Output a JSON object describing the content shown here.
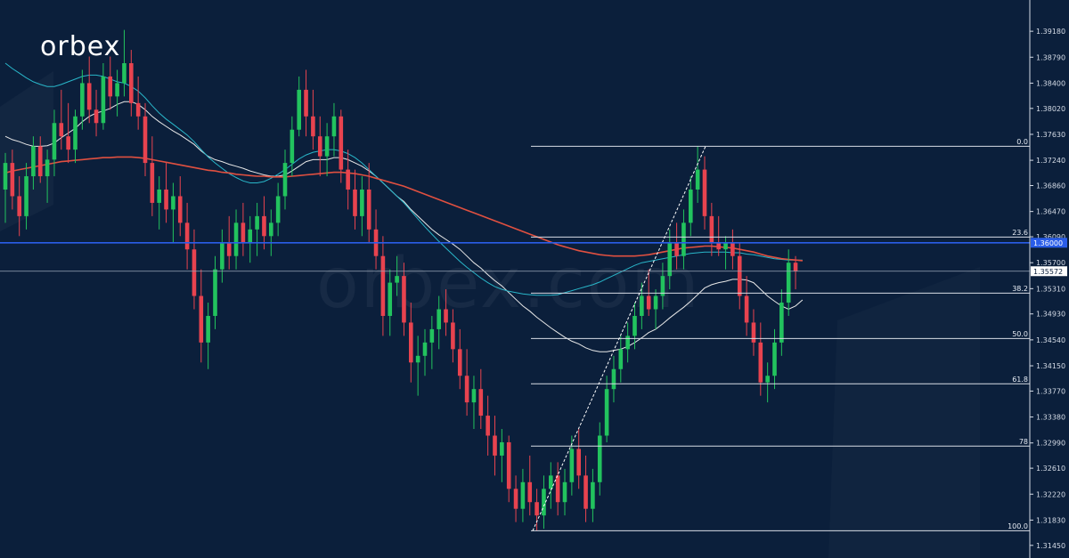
{
  "logo": {
    "text": "orbex"
  },
  "watermark": {
    "text": "orbex.com"
  },
  "colors": {
    "background": "#0b1f3b",
    "bull": "#22c35e",
    "bear": "#e8434f",
    "ma_fast": "#29b6c9",
    "ma_slow": "#e05040",
    "ma_white": "#e8e8e8",
    "fib": "#d8dde6",
    "hline": "#2a5de8",
    "price_tag": "#ffffff"
  },
  "chart_data": {
    "type": "candlestick",
    "title": "",
    "ylim": [
      1.3126,
      1.3965
    ],
    "yticks": [
      "1.39180",
      "1.38790",
      "1.38400",
      "1.38020",
      "1.37630",
      "1.37240",
      "1.36860",
      "1.36470",
      "1.36090",
      "1.35700",
      "1.35310",
      "1.34930",
      "1.34540",
      "1.34150",
      "1.33770",
      "1.33380",
      "1.32990",
      "1.32610",
      "1.32220",
      "1.31830",
      "1.31450"
    ],
    "current_price": "1.35572",
    "horizontal_level": {
      "value": 1.36,
      "label": "1.36000"
    },
    "fibonacci": {
      "high": 1.3745,
      "low": 1.3167,
      "levels": [
        {
          "label": "0.0",
          "value": 1.3745
        },
        {
          "label": "23.6",
          "value": 1.36086
        },
        {
          "label": "38.2",
          "value": 1.35242
        },
        {
          "label": "50.0",
          "value": 1.3456
        },
        {
          "label": "61.8",
          "value": 1.33879
        },
        {
          "label": "78",
          "value": 1.32942
        },
        {
          "label": "100.0",
          "value": 1.3167
        }
      ]
    },
    "candles": [
      [
        1.368,
        1.3735,
        1.363,
        1.372
      ],
      [
        1.372,
        1.374,
        1.365,
        1.367
      ],
      [
        1.367,
        1.37,
        1.361,
        1.364
      ],
      [
        1.364,
        1.372,
        1.362,
        1.37
      ],
      [
        1.37,
        1.376,
        1.368,
        1.3745
      ],
      [
        1.3745,
        1.376,
        1.369,
        1.37
      ],
      [
        1.37,
        1.374,
        1.366,
        1.3725
      ],
      [
        1.3725,
        1.38,
        1.37,
        1.378
      ],
      [
        1.378,
        1.383,
        1.374,
        1.376
      ],
      [
        1.376,
        1.381,
        1.372,
        1.374
      ],
      [
        1.374,
        1.38,
        1.372,
        1.379
      ],
      [
        1.379,
        1.386,
        1.377,
        1.384
      ],
      [
        1.384,
        1.388,
        1.378,
        1.38
      ],
      [
        1.38,
        1.383,
        1.376,
        1.378
      ],
      [
        1.378,
        1.387,
        1.377,
        1.385
      ],
      [
        1.385,
        1.388,
        1.38,
        1.382
      ],
      [
        1.382,
        1.386,
        1.379,
        1.384
      ],
      [
        1.384,
        1.392,
        1.382,
        1.387
      ],
      [
        1.387,
        1.389,
        1.379,
        1.381
      ],
      [
        1.381,
        1.385,
        1.377,
        1.379
      ],
      [
        1.379,
        1.381,
        1.37,
        1.372
      ],
      [
        1.372,
        1.376,
        1.364,
        1.366
      ],
      [
        1.366,
        1.37,
        1.362,
        1.368
      ],
      [
        1.368,
        1.372,
        1.363,
        1.365
      ],
      [
        1.365,
        1.369,
        1.36,
        1.367
      ],
      [
        1.367,
        1.37,
        1.361,
        1.363
      ],
      [
        1.363,
        1.366,
        1.356,
        1.359
      ],
      [
        1.359,
        1.362,
        1.35,
        1.352
      ],
      [
        1.352,
        1.356,
        1.342,
        1.345
      ],
      [
        1.345,
        1.351,
        1.341,
        1.349
      ],
      [
        1.349,
        1.358,
        1.347,
        1.356
      ],
      [
        1.356,
        1.362,
        1.354,
        1.36
      ],
      [
        1.36,
        1.364,
        1.356,
        1.358
      ],
      [
        1.358,
        1.365,
        1.356,
        1.363
      ],
      [
        1.363,
        1.366,
        1.358,
        1.36
      ],
      [
        1.36,
        1.364,
        1.357,
        1.362
      ],
      [
        1.362,
        1.366,
        1.358,
        1.364
      ],
      [
        1.364,
        1.367,
        1.359,
        1.361
      ],
      [
        1.361,
        1.365,
        1.358,
        1.363
      ],
      [
        1.363,
        1.369,
        1.361,
        1.367
      ],
      [
        1.367,
        1.374,
        1.365,
        1.372
      ],
      [
        1.372,
        1.379,
        1.37,
        1.377
      ],
      [
        1.377,
        1.385,
        1.376,
        1.383
      ],
      [
        1.383,
        1.386,
        1.376,
        1.379
      ],
      [
        1.379,
        1.383,
        1.374,
        1.376
      ],
      [
        1.376,
        1.379,
        1.37,
        1.373
      ],
      [
        1.373,
        1.378,
        1.37,
        1.376
      ],
      [
        1.376,
        1.381,
        1.373,
        1.379
      ],
      [
        1.379,
        1.38,
        1.369,
        1.371
      ],
      [
        1.371,
        1.374,
        1.365,
        1.368
      ],
      [
        1.368,
        1.371,
        1.362,
        1.364
      ],
      [
        1.364,
        1.37,
        1.361,
        1.368
      ],
      [
        1.368,
        1.372,
        1.36,
        1.362
      ],
      [
        1.362,
        1.365,
        1.356,
        1.358
      ],
      [
        1.358,
        1.361,
        1.346,
        1.349
      ],
      [
        1.349,
        1.356,
        1.346,
        1.354
      ],
      [
        1.354,
        1.358,
        1.352,
        1.355
      ],
      [
        1.355,
        1.357,
        1.346,
        1.348
      ],
      [
        1.348,
        1.351,
        1.339,
        1.342
      ],
      [
        1.342,
        1.346,
        1.337,
        1.343
      ],
      [
        1.343,
        1.347,
        1.34,
        1.345
      ],
      [
        1.345,
        1.349,
        1.341,
        1.347
      ],
      [
        1.347,
        1.352,
        1.344,
        1.35
      ],
      [
        1.35,
        1.353,
        1.346,
        1.348
      ],
      [
        1.348,
        1.35,
        1.342,
        1.344
      ],
      [
        1.344,
        1.347,
        1.338,
        1.34
      ],
      [
        1.34,
        1.344,
        1.334,
        1.336
      ],
      [
        1.336,
        1.34,
        1.332,
        1.338
      ],
      [
        1.338,
        1.341,
        1.332,
        1.334
      ],
      [
        1.334,
        1.337,
        1.328,
        1.331
      ],
      [
        1.331,
        1.334,
        1.325,
        1.328
      ],
      [
        1.328,
        1.332,
        1.324,
        1.33
      ],
      [
        1.33,
        1.331,
        1.321,
        1.323
      ],
      [
        1.323,
        1.325,
        1.318,
        1.32
      ],
      [
        1.32,
        1.326,
        1.318,
        1.324
      ],
      [
        1.324,
        1.328,
        1.319,
        1.321
      ],
      [
        1.321,
        1.323,
        1.3167,
        1.319
      ],
      [
        1.319,
        1.325,
        1.317,
        1.323
      ],
      [
        1.323,
        1.327,
        1.32,
        1.325
      ],
      [
        1.325,
        1.327,
        1.319,
        1.321
      ],
      [
        1.321,
        1.326,
        1.319,
        1.324
      ],
      [
        1.324,
        1.331,
        1.322,
        1.329
      ],
      [
        1.329,
        1.332,
        1.323,
        1.325
      ],
      [
        1.325,
        1.328,
        1.318,
        1.32
      ],
      [
        1.32,
        1.326,
        1.318,
        1.324
      ],
      [
        1.324,
        1.333,
        1.322,
        1.331
      ],
      [
        1.331,
        1.34,
        1.33,
        1.338
      ],
      [
        1.338,
        1.343,
        1.336,
        1.341
      ],
      [
        1.341,
        1.346,
        1.339,
        1.344
      ],
      [
        1.344,
        1.348,
        1.342,
        1.346
      ],
      [
        1.346,
        1.351,
        1.344,
        1.349
      ],
      [
        1.349,
        1.354,
        1.347,
        1.352
      ],
      [
        1.352,
        1.356,
        1.349,
        1.35
      ],
      [
        1.35,
        1.353,
        1.347,
        1.352
      ],
      [
        1.352,
        1.357,
        1.35,
        1.355
      ],
      [
        1.355,
        1.362,
        1.353,
        1.36
      ],
      [
        1.36,
        1.363,
        1.356,
        1.358
      ],
      [
        1.358,
        1.365,
        1.356,
        1.363
      ],
      [
        1.363,
        1.37,
        1.361,
        1.368
      ],
      [
        1.368,
        1.3745,
        1.366,
        1.371
      ],
      [
        1.371,
        1.373,
        1.362,
        1.364
      ],
      [
        1.364,
        1.366,
        1.358,
        1.36
      ],
      [
        1.36,
        1.364,
        1.358,
        1.359
      ],
      [
        1.359,
        1.361,
        1.356,
        1.36
      ],
      [
        1.36,
        1.362,
        1.356,
        1.358
      ],
      [
        1.358,
        1.36,
        1.35,
        1.352
      ],
      [
        1.352,
        1.355,
        1.346,
        1.348
      ],
      [
        1.348,
        1.35,
        1.343,
        1.345
      ],
      [
        1.345,
        1.348,
        1.337,
        1.339
      ],
      [
        1.339,
        1.342,
        1.336,
        1.34
      ],
      [
        1.34,
        1.347,
        1.338,
        1.345
      ],
      [
        1.345,
        1.353,
        1.343,
        1.351
      ],
      [
        1.351,
        1.359,
        1.349,
        1.357
      ],
      [
        1.357,
        1.358,
        1.353,
        1.3557
      ]
    ],
    "series": [
      {
        "values": [
          1.376,
          1.3755,
          1.3752,
          1.3748,
          1.3745,
          1.3745,
          1.3746,
          1.375,
          1.3758,
          1.3765,
          1.3772,
          1.3782,
          1.379,
          1.3795,
          1.3798,
          1.3802,
          1.3808,
          1.3812,
          1.3812,
          1.3808,
          1.38,
          1.379,
          1.3782,
          1.3775,
          1.3768,
          1.3762,
          1.3755,
          1.3748,
          1.3738,
          1.373,
          1.3725,
          1.3722,
          1.3718,
          1.3715,
          1.3712,
          1.3708,
          1.3705,
          1.3702,
          1.37,
          1.37,
          1.3702,
          1.3708,
          1.3715,
          1.3722,
          1.3725,
          1.3725,
          1.3725,
          1.3728,
          1.3728,
          1.3725,
          1.372,
          1.3715,
          1.3708,
          1.37,
          1.369,
          1.368,
          1.367,
          1.3662,
          1.365,
          1.364,
          1.363,
          1.362,
          1.3612,
          1.3605,
          1.3598,
          1.359,
          1.358,
          1.357,
          1.3562,
          1.3552,
          1.3543,
          1.3535,
          1.3525,
          1.3515,
          1.3505,
          1.3497,
          1.3488,
          1.348,
          1.3472,
          1.3465,
          1.3458,
          1.3452,
          1.3448,
          1.3442,
          1.3438,
          1.3436,
          1.3436,
          1.3438,
          1.344,
          1.3444,
          1.345,
          1.3457,
          1.3465,
          1.347,
          1.3478,
          1.3487,
          1.3495,
          1.3503,
          1.3512,
          1.3522,
          1.3532,
          1.3537,
          1.354,
          1.3542,
          1.3545,
          1.3545,
          1.3544,
          1.354,
          1.353,
          1.352,
          1.3512,
          1.3505,
          1.35,
          1.3505,
          1.3514
        ]
      },
      {
        "values": [
          1.387,
          1.3862,
          1.3855,
          1.3848,
          1.3842,
          1.3838,
          1.3835,
          1.3835,
          1.3838,
          1.3842,
          1.3846,
          1.385,
          1.3852,
          1.3852,
          1.385,
          1.3846,
          1.3842,
          1.384,
          1.3835,
          1.3828,
          1.3818,
          1.3806,
          1.3795,
          1.3786,
          1.3778,
          1.377,
          1.3762,
          1.3752,
          1.374,
          1.3729,
          1.372,
          1.3712,
          1.3704,
          1.3698,
          1.3693,
          1.369,
          1.369,
          1.3692,
          1.3697,
          1.3703,
          1.371,
          1.3718,
          1.3726,
          1.3732,
          1.3736,
          1.3738,
          1.374,
          1.374,
          1.3738,
          1.3734,
          1.3728,
          1.372,
          1.371,
          1.37,
          1.369,
          1.368,
          1.367,
          1.366,
          1.3648,
          1.3636,
          1.3624,
          1.3613,
          1.3602,
          1.3592,
          1.3582,
          1.3572,
          1.3563,
          1.3555,
          1.3547,
          1.354,
          1.3534,
          1.353,
          1.3527,
          1.3525,
          1.3523,
          1.3522,
          1.3521,
          1.3521,
          1.3521,
          1.3522,
          1.3525,
          1.3528,
          1.3531,
          1.3534,
          1.3537,
          1.3541,
          1.3546,
          1.3551,
          1.3556,
          1.3561,
          1.3566,
          1.357,
          1.3572,
          1.3574,
          1.3576,
          1.3578,
          1.358,
          1.3582,
          1.3584,
          1.3585,
          1.3586,
          1.3586,
          1.3586,
          1.3586,
          1.3585,
          1.3585,
          1.3583,
          1.3582,
          1.358,
          1.3578,
          1.3576,
          1.3575,
          1.3574,
          1.3574,
          1.3574
        ]
      },
      {
        "values": [
          1.3705,
          1.3708,
          1.371,
          1.3712,
          1.3714,
          1.3716,
          1.3718,
          1.372,
          1.3722,
          1.3723,
          1.3724,
          1.3725,
          1.3726,
          1.3727,
          1.3728,
          1.3728,
          1.3729,
          1.3729,
          1.3729,
          1.3728,
          1.3727,
          1.3725,
          1.3723,
          1.3721,
          1.3719,
          1.3717,
          1.3715,
          1.3713,
          1.3711,
          1.3709,
          1.3708,
          1.3706,
          1.3705,
          1.3703,
          1.3702,
          1.3701,
          1.37,
          1.37,
          1.3699,
          1.3699,
          1.3699,
          1.37,
          1.3701,
          1.3702,
          1.3703,
          1.3704,
          1.3705,
          1.3706,
          1.3706,
          1.3705,
          1.3704,
          1.3702,
          1.37,
          1.3697,
          1.3694,
          1.3691,
          1.3688,
          1.3685,
          1.3681,
          1.3677,
          1.3673,
          1.3669,
          1.3665,
          1.3661,
          1.3657,
          1.3653,
          1.3649,
          1.3645,
          1.3641,
          1.3637,
          1.3633,
          1.3629,
          1.3625,
          1.3621,
          1.3617,
          1.3613,
          1.3609,
          1.3605,
          1.3601,
          1.3597,
          1.3594,
          1.3591,
          1.3588,
          1.3586,
          1.3584,
          1.3582,
          1.3581,
          1.358,
          1.358,
          1.358,
          1.358,
          1.3581,
          1.3582,
          1.3584,
          1.3586,
          1.3588,
          1.359,
          1.3592,
          1.3593,
          1.3594,
          1.3595,
          1.3595,
          1.3594,
          1.3593,
          1.3592,
          1.359,
          1.3588,
          1.3586,
          1.3583,
          1.358,
          1.3578,
          1.3576,
          1.3575,
          1.3574,
          1.3573
        ]
      }
    ]
  }
}
